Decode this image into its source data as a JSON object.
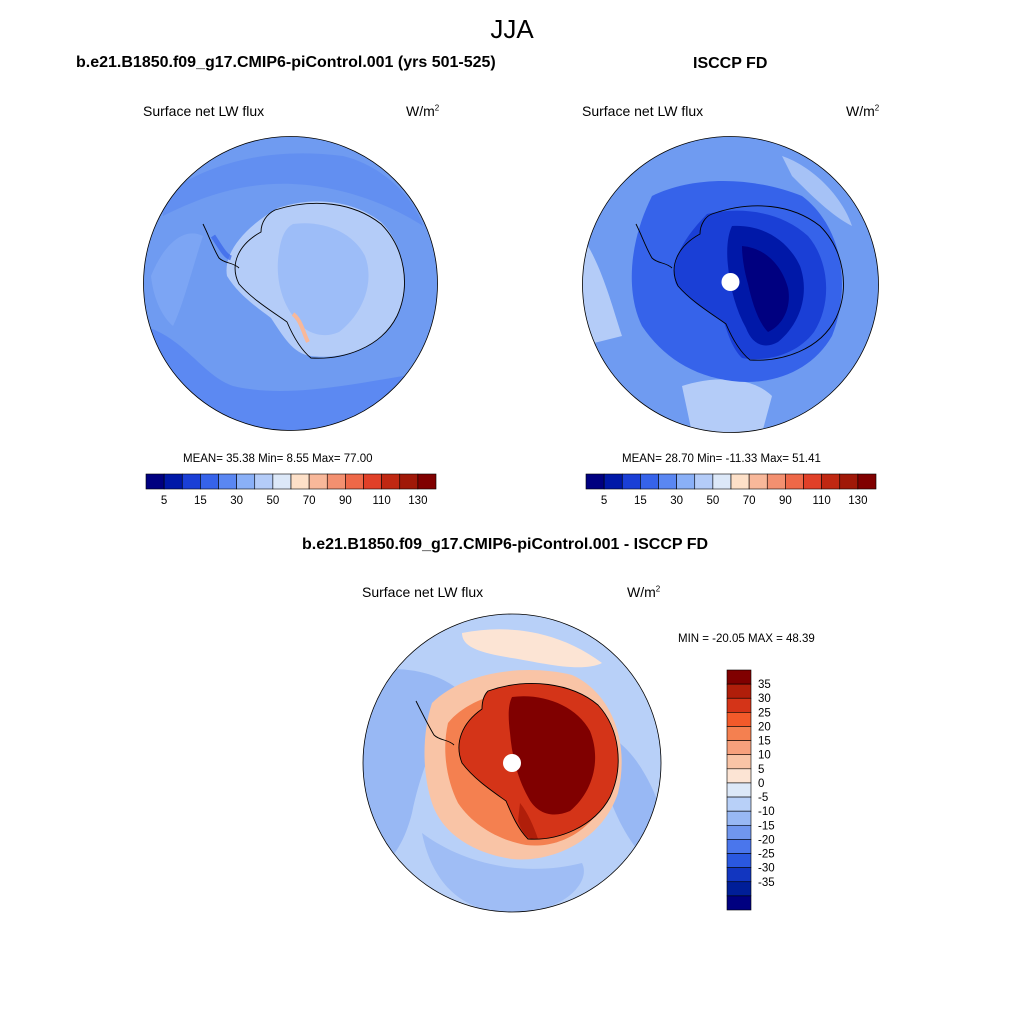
{
  "figure": {
    "title": "JJA"
  },
  "panels": [
    {
      "case_title": "b.e21.B1850.f09_g17.CMIP6-piControl.001 (yrs 501-525)",
      "variable": "Surface net LW flux",
      "units_base": "W/m",
      "units_exp": "2",
      "stats": "MEAN=  35.38  Min=   8.55  Max=  77.00",
      "colorbar": {
        "colors": [
          "#000080",
          "#0018a8",
          "#1a3fd6",
          "#3663ea",
          "#5a87f2",
          "#8ab0f7",
          "#b4ccf8",
          "#dce8f8",
          "#fde0c8",
          "#f8b89a",
          "#f39070",
          "#ee6848",
          "#e04028",
          "#c02812",
          "#a01808",
          "#800000"
        ],
        "ticks": [
          "5",
          "15",
          "30",
          "50",
          "70",
          "90",
          "110",
          "130"
        ]
      }
    },
    {
      "case_title": "ISCCP FD",
      "variable": "Surface net LW flux",
      "units_base": "W/m",
      "units_exp": "2",
      "stats": "MEAN=  28.70  Min= -11.33  Max=  51.41",
      "colorbar": {
        "colors": [
          "#000080",
          "#0018a8",
          "#1a3fd6",
          "#3663ea",
          "#5a87f2",
          "#8ab0f7",
          "#b4ccf8",
          "#dce8f8",
          "#fde0c8",
          "#f8b89a",
          "#f39070",
          "#ee6848",
          "#e04028",
          "#c02812",
          "#a01808",
          "#800000"
        ],
        "ticks": [
          "5",
          "15",
          "30",
          "50",
          "70",
          "90",
          "110",
          "130"
        ]
      }
    }
  ],
  "difference": {
    "title": "b.e21.B1850.f09_g17.CMIP6-piControl.001 - ISCCP FD",
    "variable": "Surface net LW flux",
    "units_base": "W/m",
    "units_exp": "2",
    "minmax": "MIN = -20.05 MAX =  48.39",
    "colorbar": {
      "colors": [
        "#800000",
        "#b01e0a",
        "#d43418",
        "#f25a2a",
        "#f48050",
        "#f7a07c",
        "#f9c4a6",
        "#fce4d4",
        "#dce8f8",
        "#b8d0f8",
        "#98b8f4",
        "#7096ee",
        "#4a76ec",
        "#2a58e0",
        "#1236c0",
        "#001e98",
        "#000080"
      ],
      "ticks": [
        "35",
        "30",
        "25",
        "20",
        "15",
        "10",
        "5",
        "0",
        "-5",
        "-10",
        "-15",
        "-20",
        "-25",
        "-30",
        "-35"
      ]
    }
  }
}
